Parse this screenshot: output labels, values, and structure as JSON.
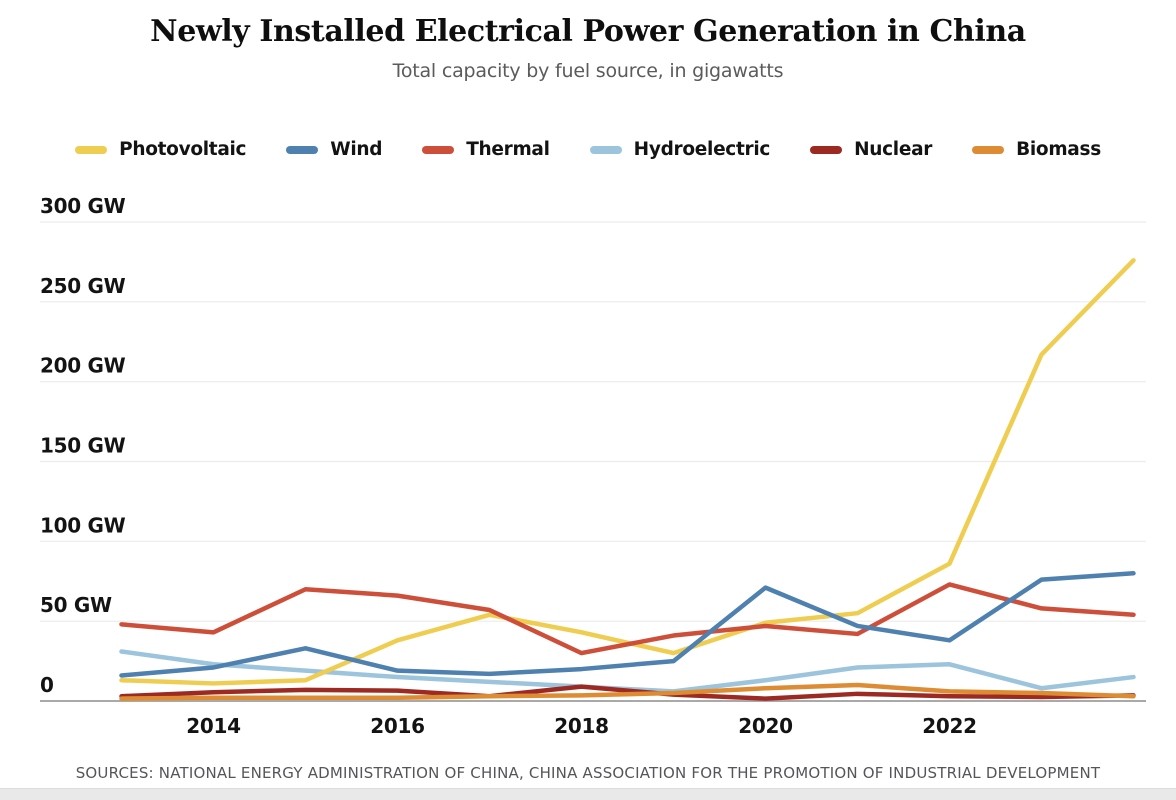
{
  "chart_data": {
    "type": "line",
    "title": "Newly Installed Electrical Power Generation in China",
    "subtitle": "Total capacity by fuel source, in gigawatts",
    "unit": "GW",
    "x": [
      2013,
      2014,
      2015,
      2016,
      2017,
      2018,
      2019,
      2020,
      2021,
      2022,
      2023,
      2024
    ],
    "series": [
      {
        "name": "Photovoltaic",
        "color": "#EFCD51",
        "values": [
          13,
          11,
          13,
          38,
          54,
          43,
          30,
          49,
          55,
          86,
          217,
          276
        ]
      },
      {
        "name": "Wind",
        "color": "#4E81AF",
        "values": [
          16,
          21,
          33,
          19,
          17,
          20,
          25,
          71,
          47,
          38,
          76,
          80
        ]
      },
      {
        "name": "Thermal",
        "color": "#CD4F39",
        "values": [
          48,
          43,
          70,
          66,
          57,
          30,
          41,
          47,
          42,
          73,
          58,
          54
        ]
      },
      {
        "name": "Hydroelectric",
        "color": "#9CC4DC",
        "values": [
          31,
          23,
          19,
          15,
          12,
          9,
          6,
          13,
          21,
          23,
          8,
          15
        ]
      },
      {
        "name": "Nuclear",
        "color": "#9C2A23",
        "values": [
          3,
          5.5,
          7,
          6.5,
          3,
          9,
          4,
          1.5,
          4.5,
          3,
          2.5,
          3.5
        ]
      },
      {
        "name": "Biomass",
        "color": "#DE8C33",
        "values": [
          1.5,
          2,
          2,
          2,
          3,
          3.5,
          5,
          8,
          10,
          6,
          5,
          3
        ]
      }
    ],
    "y_ticks": {
      "values": [
        0,
        50,
        100,
        150,
        200,
        250,
        300
      ],
      "labels": [
        "0",
        "50 GW",
        "100 GW",
        "150 GW",
        "200 GW",
        "250 GW",
        "300 GW"
      ]
    },
    "x_ticks": {
      "values": [
        2014,
        2016,
        2018,
        2020,
        2022
      ],
      "labels": [
        "2014",
        "2016",
        "2018",
        "2020",
        "2022"
      ]
    },
    "ylim": [
      0,
      300
    ],
    "xlim": [
      2013,
      2024
    ],
    "grid": "horizontal-only",
    "legend_position": "top"
  },
  "footer": {
    "sources": "SOURCES: NATIONAL ENERGY ADMINISTRATION OF CHINA, CHINA ASSOCIATION FOR THE PROMOTION OF INDUSTRIAL DEVELOPMENT"
  }
}
